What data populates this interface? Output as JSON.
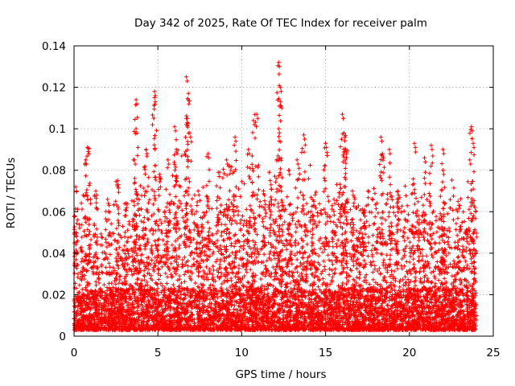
{
  "chart_data": {
    "type": "scatter",
    "title": "Day 342 of 2025, Rate Of TEC Index for receiver palm",
    "xlabel": "GPS time / hours",
    "ylabel": "ROTI / TECUs",
    "xlim": [
      0,
      25
    ],
    "ylim": [
      0,
      0.14
    ],
    "x_ticks": [
      "0",
      "5",
      "10",
      "15",
      "20",
      "25"
    ],
    "y_ticks": [
      "0",
      "0.02",
      "0.04",
      "0.06",
      "0.08",
      "0.1",
      "0.12",
      "0.14"
    ],
    "grid": true,
    "marker": "+",
    "point_color": "#ff0000",
    "x_range_of_data": [
      0,
      24
    ],
    "envelope": {
      "hours": [
        0,
        0.5,
        1,
        1.5,
        2,
        2.5,
        3,
        3.5,
        4,
        4.5,
        5,
        5.5,
        6,
        6.5,
        7,
        7.5,
        8,
        8.5,
        9,
        9.5,
        10,
        10.5,
        11,
        11.5,
        12,
        12.5,
        13,
        13.5,
        14,
        14.5,
        15,
        15.5,
        16,
        16.5,
        17,
        17.5,
        18,
        18.5,
        19,
        19.5,
        20,
        20.5,
        21,
        21.5,
        22,
        22.5,
        23,
        23.5,
        24
      ],
      "typical_max": [
        0.045,
        0.06,
        0.065,
        0.05,
        0.055,
        0.06,
        0.05,
        0.065,
        0.075,
        0.07,
        0.08,
        0.06,
        0.075,
        0.08,
        0.07,
        0.06,
        0.07,
        0.065,
        0.075,
        0.08,
        0.07,
        0.075,
        0.06,
        0.07,
        0.075,
        0.07,
        0.06,
        0.07,
        0.075,
        0.06,
        0.07,
        0.06,
        0.08,
        0.065,
        0.06,
        0.065,
        0.07,
        0.075,
        0.065,
        0.07,
        0.06,
        0.07,
        0.065,
        0.06,
        0.07,
        0.065,
        0.06,
        0.065,
        0.045
      ]
    },
    "peaks": [
      {
        "x": 0.1,
        "y": 0.072
      },
      {
        "x": 0.1,
        "y": 0.05
      },
      {
        "x": 0.8,
        "y": 0.091
      },
      {
        "x": 0.7,
        "y": 0.085
      },
      {
        "x": 1.3,
        "y": 0.07
      },
      {
        "x": 2.0,
        "y": 0.066
      },
      {
        "x": 2.6,
        "y": 0.075
      },
      {
        "x": 3.1,
        "y": 0.064
      },
      {
        "x": 3.6,
        "y": 0.085
      },
      {
        "x": 3.7,
        "y": 0.114
      },
      {
        "x": 3.7,
        "y": 0.1
      },
      {
        "x": 4.3,
        "y": 0.09
      },
      {
        "x": 4.8,
        "y": 0.118
      },
      {
        "x": 4.8,
        "y": 0.115
      },
      {
        "x": 5.1,
        "y": 0.078
      },
      {
        "x": 5.6,
        "y": 0.085
      },
      {
        "x": 6.0,
        "y": 0.101
      },
      {
        "x": 6.1,
        "y": 0.09
      },
      {
        "x": 6.7,
        "y": 0.125
      },
      {
        "x": 6.8,
        "y": 0.114
      },
      {
        "x": 6.7,
        "y": 0.105
      },
      {
        "x": 6.9,
        "y": 0.098
      },
      {
        "x": 7.4,
        "y": 0.07
      },
      {
        "x": 8.0,
        "y": 0.088
      },
      {
        "x": 8.6,
        "y": 0.079
      },
      {
        "x": 9.1,
        "y": 0.085
      },
      {
        "x": 9.6,
        "y": 0.096
      },
      {
        "x": 9.3,
        "y": 0.082
      },
      {
        "x": 10.4,
        "y": 0.09
      },
      {
        "x": 10.9,
        "y": 0.107
      },
      {
        "x": 10.7,
        "y": 0.104
      },
      {
        "x": 11.3,
        "y": 0.07
      },
      {
        "x": 11.7,
        "y": 0.075
      },
      {
        "x": 12.2,
        "y": 0.132
      },
      {
        "x": 12.3,
        "y": 0.12
      },
      {
        "x": 12.3,
        "y": 0.113
      },
      {
        "x": 12.2,
        "y": 0.1
      },
      {
        "x": 12.8,
        "y": 0.08
      },
      {
        "x": 13.3,
        "y": 0.085
      },
      {
        "x": 13.7,
        "y": 0.097
      },
      {
        "x": 14.3,
        "y": 0.065
      },
      {
        "x": 15.0,
        "y": 0.093
      },
      {
        "x": 15.5,
        "y": 0.066
      },
      {
        "x": 16.0,
        "y": 0.107
      },
      {
        "x": 16.1,
        "y": 0.098
      },
      {
        "x": 16.2,
        "y": 0.09
      },
      {
        "x": 16.6,
        "y": 0.07
      },
      {
        "x": 17.3,
        "y": 0.06
      },
      {
        "x": 18.3,
        "y": 0.096
      },
      {
        "x": 18.4,
        "y": 0.088
      },
      {
        "x": 18.8,
        "y": 0.09
      },
      {
        "x": 19.3,
        "y": 0.07
      },
      {
        "x": 20.3,
        "y": 0.093
      },
      {
        "x": 20.9,
        "y": 0.086
      },
      {
        "x": 21.3,
        "y": 0.092
      },
      {
        "x": 22.0,
        "y": 0.09
      },
      {
        "x": 22.0,
        "y": 0.08
      },
      {
        "x": 22.9,
        "y": 0.065
      },
      {
        "x": 23.7,
        "y": 0.101
      },
      {
        "x": 23.8,
        "y": 0.093
      },
      {
        "x": 23.6,
        "y": 0.085
      },
      {
        "x": 23.9,
        "y": 0.062
      }
    ],
    "baseline_min": 0.003
  }
}
